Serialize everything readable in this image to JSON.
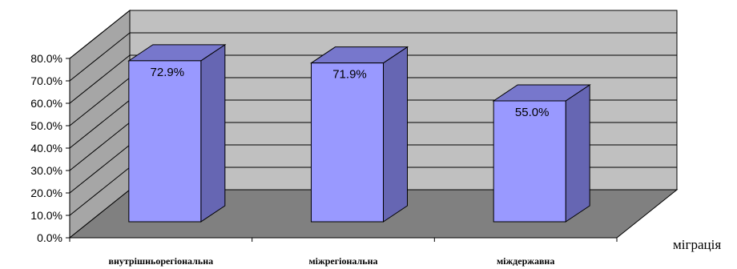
{
  "chart_data": {
    "type": "bar",
    "title": "",
    "xlabel": "міграція",
    "ylabel": "",
    "categories": [
      "внутрішньорегіональна",
      "міжрегіональна",
      "міждержавна"
    ],
    "values": [
      72.9,
      71.9,
      55.0
    ],
    "data_labels": [
      "72.9%",
      "71.9%",
      "55.0%"
    ],
    "ylim": [
      0,
      80
    ],
    "yticks": [
      "0.0%",
      "10.0%",
      "20.0%",
      "30.0%",
      "40.0%",
      "50.0%",
      "60.0%",
      "70.0%",
      "80.0%"
    ],
    "grid": true,
    "style": "3d-column",
    "colors": {
      "bar_front": "#9999ff",
      "bar_side": "#6666b3",
      "bar_top": "#7777cc",
      "back_wall": "#c0c0c0",
      "side_wall": "#a6a6a6",
      "floor": "#808080"
    }
  }
}
